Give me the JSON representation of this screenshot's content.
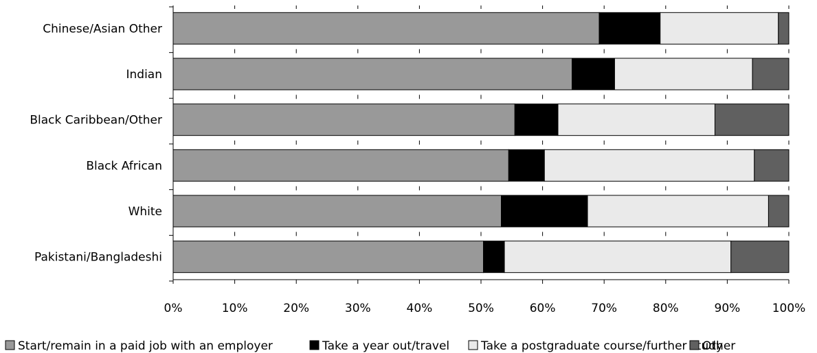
{
  "chart_data": {
    "type": "bar",
    "orientation": "horizontal",
    "stacked": "percent",
    "categories": [
      "Chinese/Asian Other",
      "Indian",
      "Black Caribbean/Other",
      "Black African",
      "White",
      "Pakistani/Bangladeshi"
    ],
    "series": [
      {
        "name": "Start/remain in a paid job with an employer",
        "color": "#999999",
        "values": [
          69.2,
          64.8,
          55.5,
          54.5,
          53.3,
          50.4
        ]
      },
      {
        "name": "Take a year out/travel",
        "color": "#000000",
        "values": [
          9.9,
          6.9,
          7.0,
          5.8,
          14.0,
          3.4
        ]
      },
      {
        "name": "Take a postgraduate course/further study",
        "color": "#eaeaea",
        "values": [
          19.2,
          22.4,
          25.5,
          34.1,
          29.4,
          36.8
        ]
      },
      {
        "name": "Other",
        "color": "#606060",
        "values": [
          1.7,
          5.9,
          12.0,
          5.6,
          3.3,
          9.4
        ]
      }
    ],
    "xlim": [
      0,
      100
    ],
    "x_ticks": [
      "0%",
      "10%",
      "20%",
      "30%",
      "40%",
      "50%",
      "60%",
      "70%",
      "80%",
      "90%",
      "100%"
    ],
    "grid": false,
    "legend_position": "bottom"
  }
}
